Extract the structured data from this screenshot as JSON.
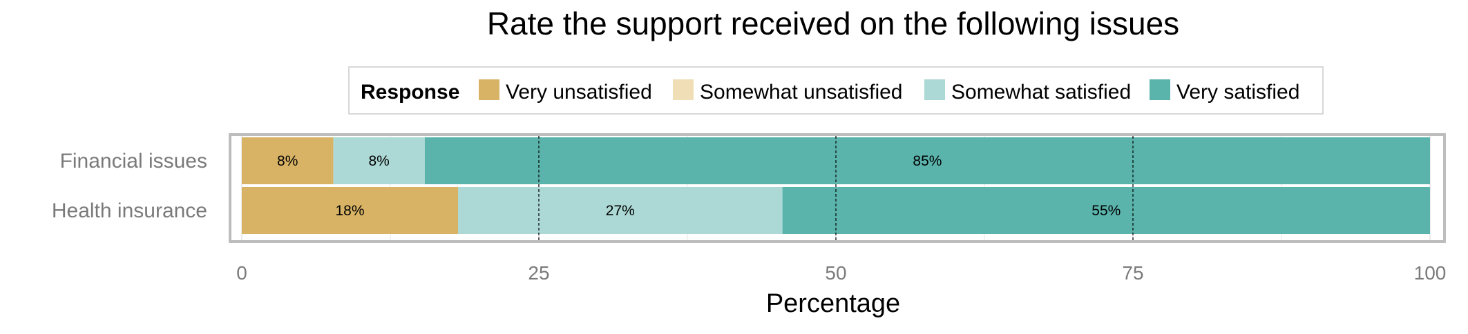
{
  "chart_data": {
    "type": "bar",
    "orientation": "horizontal",
    "stacked": true,
    "title": "Rate the support received on the following issues",
    "xlabel": "Percentage",
    "ylabel": "",
    "xlim": [
      0,
      100
    ],
    "x_ticks": [
      "0",
      "25",
      "50",
      "75",
      "100"
    ],
    "legend": {
      "title": "Response",
      "position": "top",
      "entries": [
        "Very unsatisfied",
        "Somewhat unsatisfied",
        "Somewhat satisfied",
        "Very satisfied"
      ]
    },
    "categories": [
      "Financial issues",
      "Health insurance"
    ],
    "series": [
      {
        "name": "Very unsatisfied",
        "color": "#d8b365",
        "values": [
          7.7,
          18.2
        ],
        "labels": [
          "8%",
          "18%"
        ]
      },
      {
        "name": "Somewhat unsatisfied",
        "color": "#f0dfb6",
        "values": [
          0,
          0
        ],
        "labels": [
          "",
          ""
        ]
      },
      {
        "name": "Somewhat satisfied",
        "color": "#acd9d5",
        "values": [
          7.7,
          27.3
        ],
        "labels": [
          "8%",
          "27%"
        ]
      },
      {
        "name": "Very satisfied",
        "color": "#5ab4ac",
        "values": [
          84.6,
          54.5
        ],
        "labels": [
          "85%",
          "55%"
        ]
      }
    ],
    "grid": true,
    "reference_lines": [
      25,
      50,
      75
    ]
  }
}
